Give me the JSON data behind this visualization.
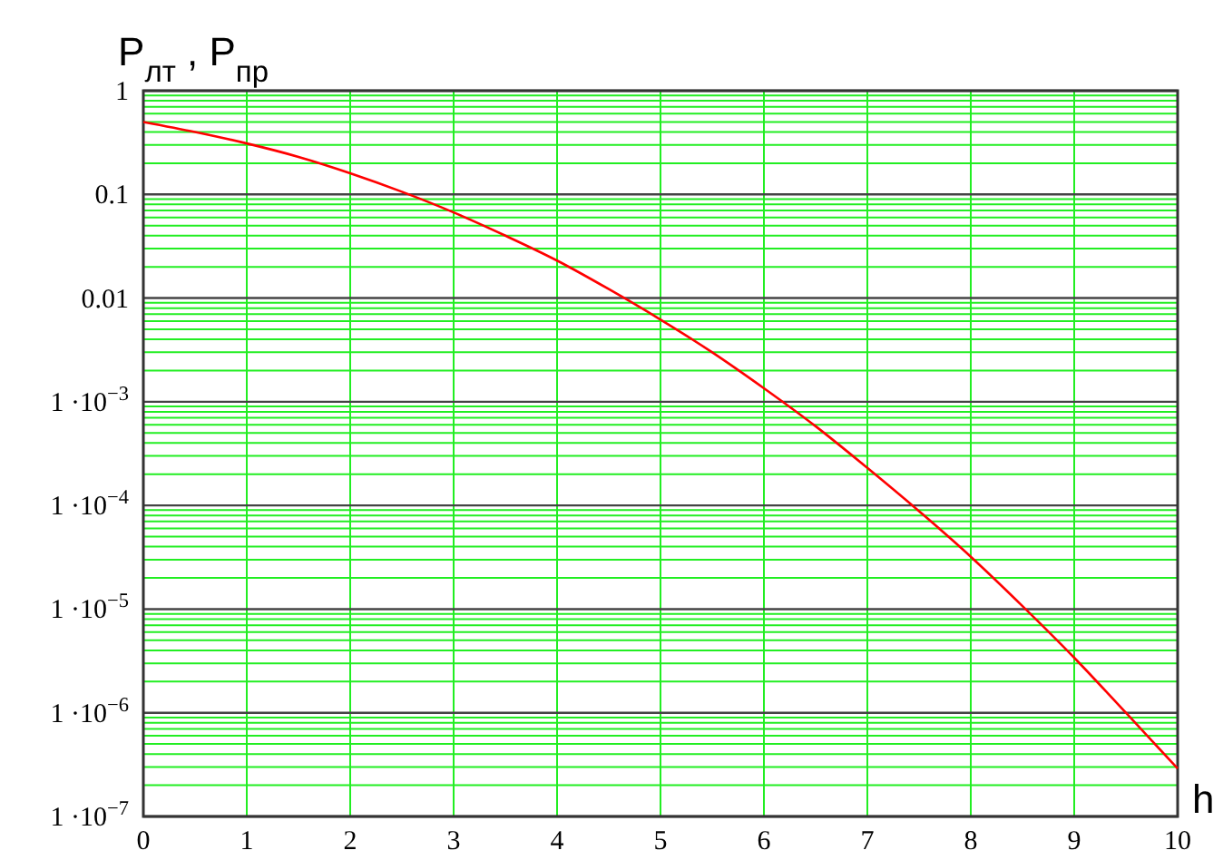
{
  "chart_data": {
    "type": "line",
    "ylabel": "P$_{лт}$ , P$_{пр}$",
    "xlabel": "h",
    "x": [
      0,
      0.5,
      1,
      1.5,
      2,
      2.5,
      3,
      3.5,
      4,
      4.5,
      5,
      5.5,
      6,
      6.5,
      7,
      7.5,
      8,
      8.5,
      9,
      9.5,
      10
    ],
    "series": [
      {
        "color": "#ff0000",
        "values": [
          0.5,
          0.4,
          0.31,
          0.23,
          0.16,
          0.106,
          0.067,
          0.04,
          0.023,
          0.0122,
          0.0062,
          0.003,
          0.00135,
          0.00058,
          0.00023,
          8.8e-05,
          3.2e-05,
          1.07e-05,
          3.4e-06,
          1e-06,
          2.9e-07
        ]
      }
    ],
    "xlim": [
      0,
      10
    ],
    "xticks": [
      0,
      1,
      2,
      3,
      4,
      5,
      6,
      7,
      8,
      9,
      10
    ],
    "ylim": [
      1e-07,
      1
    ],
    "log": true,
    "yticks": [
      {
        "value": 1,
        "label": "1"
      },
      {
        "value": 0.1,
        "label": "0.1"
      },
      {
        "value": 0.01,
        "label": "0.01"
      },
      {
        "value": 0.001,
        "label": "1 ·10$^{−3}$"
      },
      {
        "value": 0.0001,
        "label": "1 ·10$^{−4}$"
      },
      {
        "value": 1e-05,
        "label": "1 ·10$^{−5}$"
      },
      {
        "value": 1e-06,
        "label": "1 ·10$^{−6}$"
      },
      {
        "value": 1e-07,
        "label": "1 ·10$^{−7}$"
      }
    ],
    "grid": true
  }
}
